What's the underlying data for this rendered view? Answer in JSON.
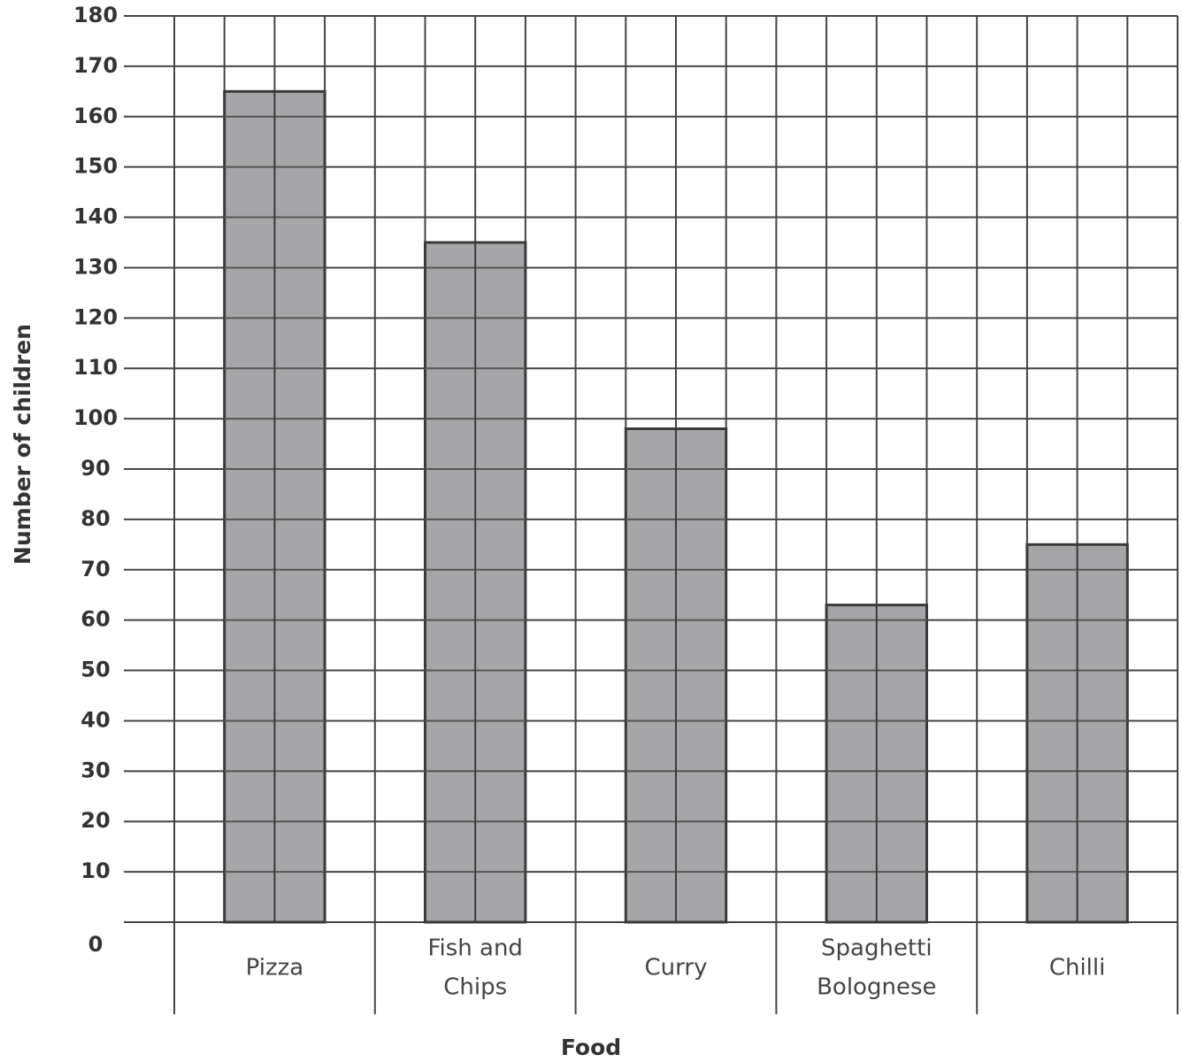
{
  "chart_data": {
    "type": "bar",
    "title": "",
    "xlabel": "Food",
    "ylabel": "Number of children",
    "categories": [
      [
        "Pizza"
      ],
      [
        "Fish and",
        "Chips"
      ],
      [
        "Curry"
      ],
      [
        "Spaghetti",
        "Bolognese"
      ],
      [
        "Chilli"
      ]
    ],
    "values": [
      165,
      135,
      98,
      63,
      75
    ],
    "ylim": [
      0,
      180
    ],
    "ytick_step": 10,
    "grid": true,
    "bar_color": "#a6a6a9",
    "grid_color": "#444444"
  }
}
